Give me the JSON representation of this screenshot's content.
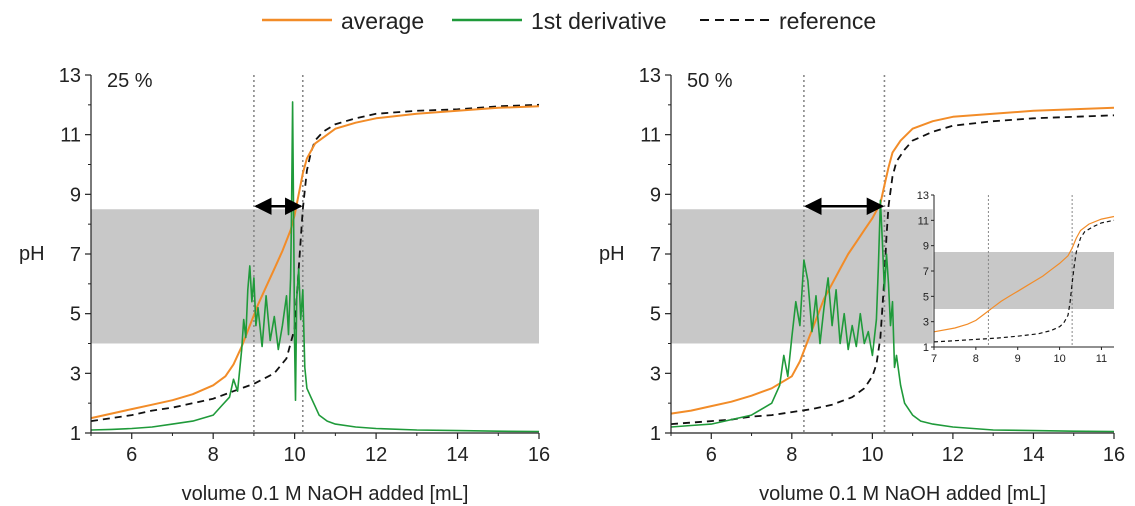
{
  "legend": {
    "position": "top-center",
    "items": [
      {
        "label": "average",
        "color": "#f28c28",
        "style": "solid"
      },
      {
        "label": "1st derivative",
        "color": "#1f9a3a",
        "style": "solid"
      },
      {
        "label": "reference",
        "color": "#111111",
        "style": "dashed"
      }
    ]
  },
  "colors": {
    "band": "#c8c8c8",
    "average": "#f28c28",
    "derivative": "#1f9a3a",
    "reference": "#111111",
    "guide": "#888888"
  },
  "chart_data": [
    {
      "type": "line",
      "panel_label": "25 %",
      "xlabel": "volume 0.1 M NaOH added [mL]",
      "ylabel": "pH",
      "xlim": [
        5,
        16
      ],
      "ylim": [
        1,
        13
      ],
      "xticks": [
        6,
        8,
        10,
        12,
        14,
        16
      ],
      "yticks": [
        1,
        3,
        5,
        7,
        9,
        11,
        13
      ],
      "band_ph": [
        4.0,
        8.5
      ],
      "vlines": [
        9.0,
        10.2
      ],
      "arrow": {
        "x1": 9.0,
        "x2": 10.2,
        "y": 8.6
      },
      "series": [
        {
          "name": "average",
          "x": [
            5.0,
            5.5,
            6.0,
            6.5,
            7.0,
            7.5,
            8.0,
            8.3,
            8.5,
            8.7,
            8.9,
            9.1,
            9.3,
            9.5,
            9.7,
            9.9,
            10.0,
            10.1,
            10.2,
            10.3,
            10.5,
            10.8,
            11.0,
            11.5,
            12.0,
            13.0,
            14.0,
            15.0,
            16.0
          ],
          "y": [
            1.5,
            1.65,
            1.8,
            1.95,
            2.1,
            2.3,
            2.6,
            2.9,
            3.3,
            3.9,
            4.6,
            5.3,
            5.9,
            6.5,
            7.1,
            7.8,
            8.3,
            9.0,
            9.7,
            10.2,
            10.7,
            11.0,
            11.2,
            11.4,
            11.55,
            11.7,
            11.8,
            11.9,
            11.95
          ]
        },
        {
          "name": "reference",
          "x": [
            5.0,
            5.5,
            6.0,
            6.5,
            7.0,
            7.5,
            8.0,
            8.5,
            9.0,
            9.5,
            9.8,
            10.0,
            10.1,
            10.2,
            10.3,
            10.4,
            10.5,
            10.7,
            11.0,
            11.5,
            12.0,
            13.0,
            14.0,
            15.0,
            16.0
          ],
          "y": [
            1.4,
            1.5,
            1.6,
            1.75,
            1.85,
            2.0,
            2.15,
            2.4,
            2.65,
            3.0,
            3.5,
            4.5,
            6.5,
            8.5,
            9.8,
            10.4,
            10.8,
            11.1,
            11.35,
            11.55,
            11.7,
            11.8,
            11.85,
            11.95,
            12.0
          ]
        },
        {
          "name": "1st derivative",
          "x": [
            5.0,
            5.5,
            6.0,
            6.5,
            7.0,
            7.5,
            8.0,
            8.2,
            8.4,
            8.5,
            8.6,
            8.7,
            8.75,
            8.8,
            8.85,
            8.9,
            8.95,
            9.0,
            9.05,
            9.1,
            9.2,
            9.3,
            9.4,
            9.5,
            9.6,
            9.7,
            9.8,
            9.85,
            9.9,
            9.92,
            9.95,
            9.98,
            10.0,
            10.02,
            10.05,
            10.1,
            10.15,
            10.2,
            10.25,
            10.3,
            10.4,
            10.5,
            10.6,
            10.8,
            11.0,
            11.5,
            12.0,
            13.0,
            14.0,
            15.0,
            16.0
          ],
          "y": [
            1.1,
            1.12,
            1.15,
            1.2,
            1.3,
            1.4,
            1.6,
            1.9,
            2.2,
            2.8,
            2.4,
            3.8,
            4.8,
            4.2,
            5.8,
            6.6,
            5.4,
            6.2,
            4.6,
            5.2,
            3.9,
            5.6,
            4.1,
            4.9,
            3.8,
            4.6,
            5.6,
            4.3,
            6.2,
            8.0,
            12.1,
            7.5,
            4.0,
            2.1,
            5.5,
            6.5,
            4.8,
            5.8,
            3.2,
            2.5,
            2.2,
            1.9,
            1.6,
            1.4,
            1.3,
            1.2,
            1.15,
            1.1,
            1.08,
            1.06,
            1.05
          ]
        }
      ]
    },
    {
      "type": "line",
      "panel_label": "50 %",
      "xlabel": "volume 0.1 M NaOH added [mL]",
      "ylabel": "pH",
      "xlim": [
        5,
        16
      ],
      "ylim": [
        1,
        13
      ],
      "xticks": [
        6,
        8,
        10,
        12,
        14,
        16
      ],
      "yticks": [
        1,
        3,
        5,
        7,
        9,
        11,
        13
      ],
      "band_ph": [
        4.0,
        8.5
      ],
      "band_x_end": 11.5,
      "vlines": [
        8.3,
        10.3
      ],
      "arrow": {
        "x1": 8.3,
        "x2": 10.3,
        "y": 8.6
      },
      "series": [
        {
          "name": "average",
          "x": [
            5.0,
            5.5,
            6.0,
            6.5,
            7.0,
            7.5,
            8.0,
            8.2,
            8.4,
            8.6,
            8.8,
            9.0,
            9.2,
            9.4,
            9.6,
            9.8,
            10.0,
            10.2,
            10.3,
            10.4,
            10.5,
            10.7,
            11.0,
            11.5,
            12.0,
            13.0,
            14.0,
            15.0,
            16.0
          ],
          "y": [
            1.65,
            1.75,
            1.9,
            2.05,
            2.25,
            2.5,
            2.9,
            3.4,
            4.1,
            4.8,
            5.5,
            6.0,
            6.5,
            7.0,
            7.4,
            7.8,
            8.2,
            8.7,
            9.3,
            9.9,
            10.4,
            10.8,
            11.2,
            11.45,
            11.6,
            11.7,
            11.8,
            11.85,
            11.9
          ]
        },
        {
          "name": "reference",
          "x": [
            5.0,
            5.5,
            6.0,
            6.5,
            7.0,
            7.5,
            8.0,
            8.5,
            9.0,
            9.5,
            9.8,
            10.0,
            10.1,
            10.2,
            10.3,
            10.35,
            10.4,
            10.5,
            10.6,
            10.8,
            11.0,
            11.5,
            12.0,
            13.0,
            14.0,
            15.0,
            16.0
          ],
          "y": [
            1.3,
            1.35,
            1.4,
            1.45,
            1.55,
            1.6,
            1.7,
            1.8,
            1.95,
            2.2,
            2.5,
            2.9,
            3.3,
            4.2,
            6.2,
            7.6,
            8.6,
            9.6,
            10.1,
            10.5,
            10.8,
            11.1,
            11.3,
            11.45,
            11.55,
            11.6,
            11.65
          ]
        },
        {
          "name": "1st derivative",
          "x": [
            5.0,
            5.5,
            6.0,
            6.5,
            7.0,
            7.5,
            7.7,
            7.8,
            7.9,
            8.0,
            8.1,
            8.2,
            8.3,
            8.4,
            8.5,
            8.6,
            8.7,
            8.8,
            8.9,
            9.0,
            9.1,
            9.2,
            9.3,
            9.4,
            9.5,
            9.6,
            9.7,
            9.8,
            9.9,
            10.0,
            10.1,
            10.15,
            10.2,
            10.25,
            10.3,
            10.35,
            10.4,
            10.45,
            10.5,
            10.55,
            10.6,
            10.7,
            10.8,
            11.0,
            11.2,
            11.5,
            12.0,
            13.0,
            14.0,
            15.0,
            16.0
          ],
          "y": [
            1.2,
            1.25,
            1.3,
            1.45,
            1.6,
            2.0,
            2.6,
            3.6,
            2.9,
            4.2,
            5.4,
            4.6,
            6.8,
            6.1,
            4.4,
            5.6,
            4.0,
            5.2,
            6.2,
            4.6,
            5.8,
            4.0,
            5.0,
            3.8,
            4.6,
            3.9,
            5.0,
            4.0,
            4.4,
            3.6,
            4.8,
            6.6,
            8.8,
            7.4,
            5.8,
            7.0,
            6.0,
            4.6,
            5.4,
            3.2,
            3.6,
            2.6,
            2.0,
            1.6,
            1.4,
            1.3,
            1.2,
            1.1,
            1.08,
            1.06,
            1.05
          ]
        }
      ],
      "inset": {
        "xlim": [
          7,
          11.3
        ],
        "ylim": [
          1,
          13
        ],
        "xticks": [
          7,
          8,
          9,
          10,
          11
        ],
        "yticks": [
          1,
          3,
          5,
          7,
          9,
          11,
          13
        ],
        "band_ph": [
          4.0,
          8.5
        ],
        "vlines": [
          8.3,
          10.3
        ],
        "series": [
          {
            "name": "average",
            "x": [
              7.0,
              7.5,
              7.8,
              8.0,
              8.2,
              8.4,
              8.6,
              8.8,
              9.0,
              9.2,
              9.4,
              9.6,
              9.8,
              10.0,
              10.2,
              10.3,
              10.4,
              10.5,
              10.7,
              11.0,
              11.3
            ],
            "y": [
              2.2,
              2.5,
              2.8,
              3.1,
              3.6,
              4.1,
              4.6,
              5.0,
              5.4,
              5.8,
              6.2,
              6.6,
              7.1,
              7.6,
              8.2,
              8.8,
              9.6,
              10.2,
              10.7,
              11.1,
              11.3
            ]
          },
          {
            "name": "reference",
            "x": [
              7.0,
              7.5,
              8.0,
              8.5,
              9.0,
              9.5,
              9.8,
              10.0,
              10.1,
              10.2,
              10.25,
              10.3,
              10.35,
              10.4,
              10.5,
              10.6,
              10.8,
              11.0,
              11.3
            ],
            "y": [
              1.4,
              1.5,
              1.6,
              1.7,
              1.85,
              2.05,
              2.3,
              2.6,
              2.9,
              3.5,
              4.5,
              6.0,
              7.4,
              8.5,
              9.6,
              10.1,
              10.5,
              10.8,
              11.0
            ]
          }
        ]
      }
    }
  ]
}
